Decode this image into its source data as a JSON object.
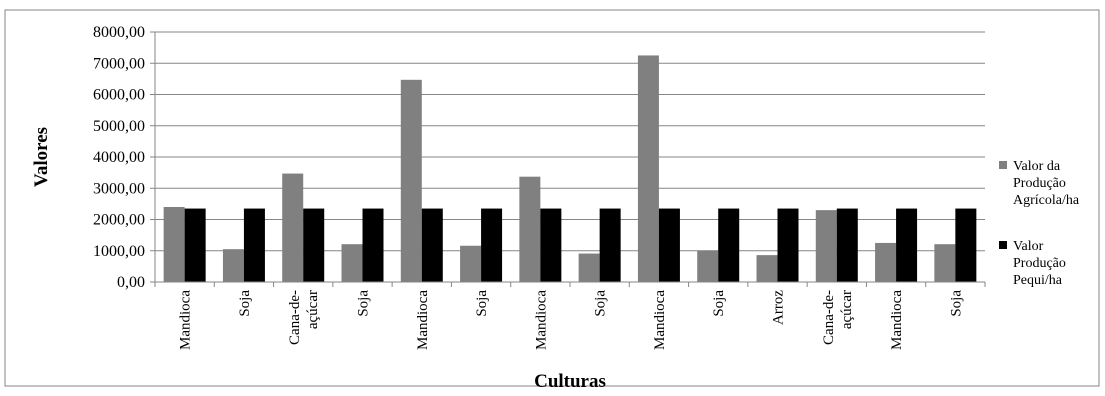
{
  "chart_data": {
    "type": "bar",
    "xlabel": "Culturas",
    "ylabel": "Valores",
    "ylim": [
      0,
      8000
    ],
    "y_ticks": [
      "0,00",
      "1000,00",
      "2000,00",
      "3000,00",
      "4000,00",
      "5000,00",
      "6000,00",
      "7000,00",
      "8000,00"
    ],
    "grid": "horizontal",
    "legend_position": "right",
    "categories": [
      "Mandioca",
      "Soja",
      "Cana-de-açúcar",
      "Soja",
      "Mandioca",
      "Soja",
      "Mandioca",
      "Soja",
      "Mandioca",
      "Soja",
      "Arroz",
      "Cana-de-açúcar",
      "Mandioca",
      "Soja"
    ],
    "series": [
      {
        "name": "Valor da Produção Agrícola/ha",
        "color": "#808080",
        "values": [
          2400,
          1050,
          3470,
          1210,
          6470,
          1160,
          3370,
          910,
          7250,
          1010,
          860,
          2300,
          1250,
          1210
        ]
      },
      {
        "name": "Valor Produção Pequi/ha",
        "color": "#000000",
        "values": [
          2350,
          2350,
          2350,
          2350,
          2350,
          2350,
          2350,
          2350,
          2350,
          2350,
          2350,
          2350,
          2350,
          2350
        ]
      }
    ]
  }
}
